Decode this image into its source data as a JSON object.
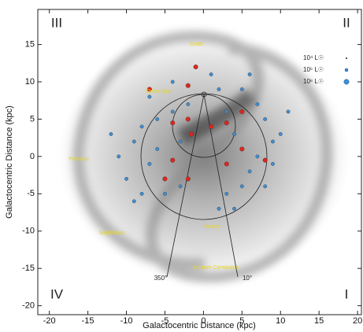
{
  "chart_data": {
    "type": "scatter",
    "x_label": "Galactocentric Distance (kpc)",
    "y_label": "Galactocentric Distance (kpc)",
    "xlim": [
      -21.5,
      20.5
    ],
    "ylim": [
      -21.2,
      19.7
    ],
    "xticks": [
      -20,
      -15,
      -10,
      -5,
      0,
      5,
      10,
      15,
      20
    ],
    "yticks": [
      -20,
      -15,
      -10,
      -5,
      0,
      5,
      10,
      15
    ],
    "quadrants": [
      "III",
      "II",
      "IV",
      "I"
    ],
    "arms": [
      "Outer",
      "Orion Spur",
      "Perseus",
      "Sagittarius",
      "Norma",
      "Scutum-Centaurus"
    ],
    "angles": [
      "350°",
      "10°"
    ],
    "legend": [
      {
        "label": "10⁴ L☉"
      },
      {
        "label": "10⁵ L☉"
      },
      {
        "label": "10⁶ L☉"
      }
    ],
    "series": [
      {
        "color": "#3d8fd6",
        "x": [
          -8,
          -9,
          -7,
          -10,
          -5,
          -3,
          -6,
          -4,
          -2,
          2,
          5,
          7,
          8,
          9,
          7,
          6,
          5,
          3,
          2,
          8,
          9,
          -8,
          -11,
          -6,
          -3,
          4,
          3,
          10,
          -7,
          1,
          6,
          -4,
          4,
          -9,
          11,
          -12
        ],
        "values": [
          4,
          2,
          -1,
          -3,
          -5,
          -4,
          5,
          6,
          7,
          9,
          9,
          7,
          5,
          2,
          0,
          -2,
          -4,
          -5,
          -7,
          -4,
          -1,
          -5,
          0,
          1,
          2,
          3,
          6,
          3,
          8,
          11,
          11,
          10,
          -7,
          -6,
          6,
          3
        ]
      },
      {
        "color": "#e0251d",
        "x": [
          -2,
          -7,
          -2,
          -4,
          1,
          3,
          -4,
          -5,
          -2,
          3,
          5,
          8,
          -1,
          -1.6,
          5
        ],
        "values": [
          9.5,
          9,
          5,
          4.5,
          4,
          4.5,
          -0.5,
          -3,
          -3,
          -1,
          1,
          -0.5,
          12,
          3,
          6
        ]
      }
    ]
  }
}
